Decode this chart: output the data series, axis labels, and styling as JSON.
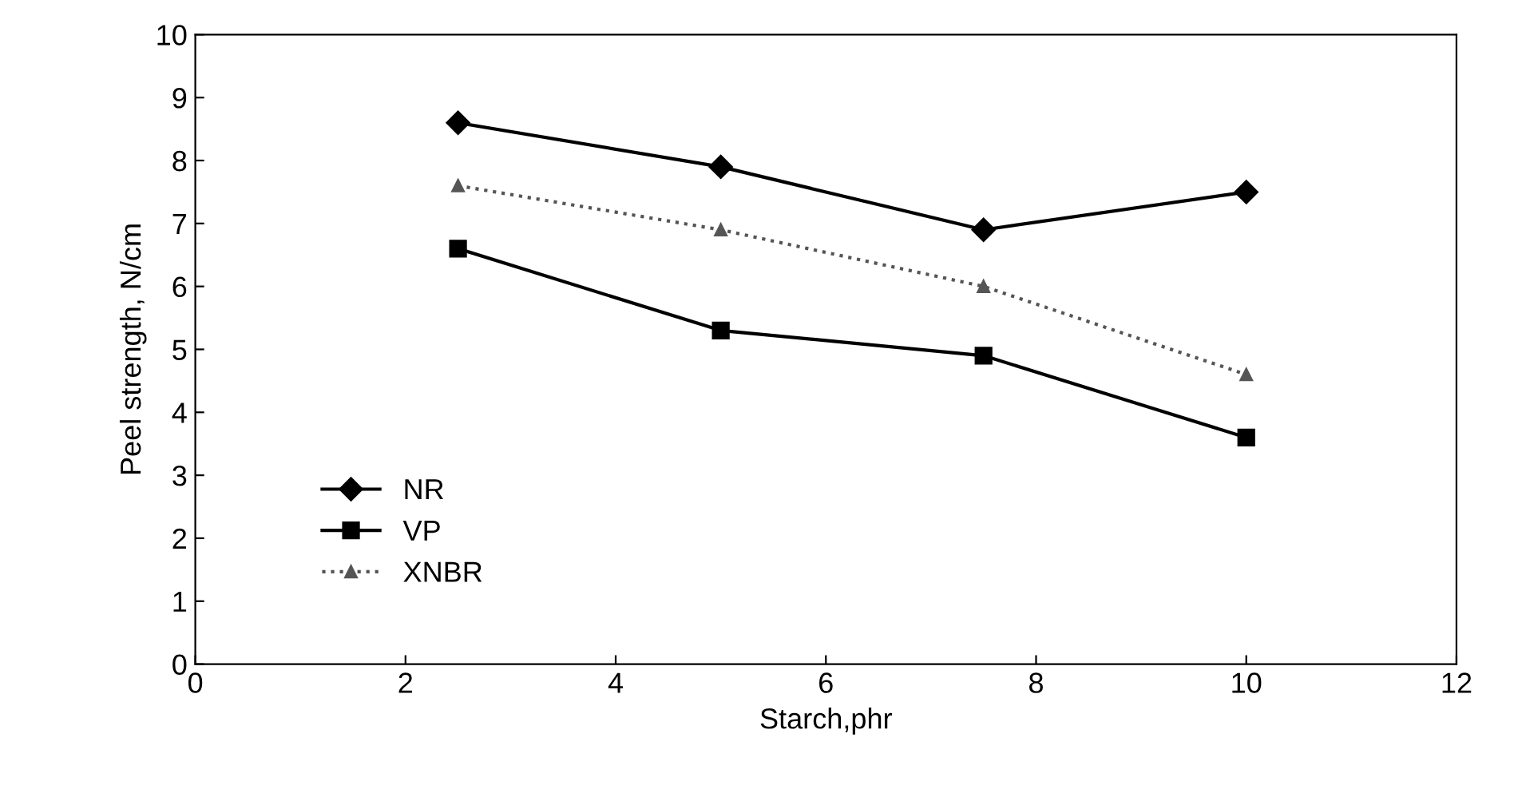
{
  "chart_data": {
    "type": "line",
    "xlabel": "Starch,phr",
    "ylabel": "Peel strength, N/cm",
    "x": [
      2.5,
      5,
      7.5,
      10
    ],
    "series": [
      {
        "name": "NR",
        "color": "#000000",
        "values": [
          8.6,
          7.9,
          6.9,
          7.5
        ],
        "marker": "diamond",
        "line_style": "solid"
      },
      {
        "name": "VP",
        "color": "#000000",
        "values": [
          6.6,
          5.3,
          4.9,
          3.6
        ],
        "marker": "square",
        "line_style": "solid"
      },
      {
        "name": "XNBR",
        "color": "#555555",
        "values": [
          7.6,
          6.9,
          6.0,
          4.6
        ],
        "marker": "triangle",
        "line_style": "dotted"
      }
    ],
    "xlim": [
      0,
      12
    ],
    "xticks": [
      0,
      2,
      4,
      6,
      8,
      10,
      12
    ],
    "ylim": [
      0,
      10
    ],
    "yticks": [
      0,
      1,
      2,
      3,
      4,
      5,
      6,
      7,
      8,
      9,
      10
    ],
    "grid": false,
    "legend": "bottom left"
  }
}
